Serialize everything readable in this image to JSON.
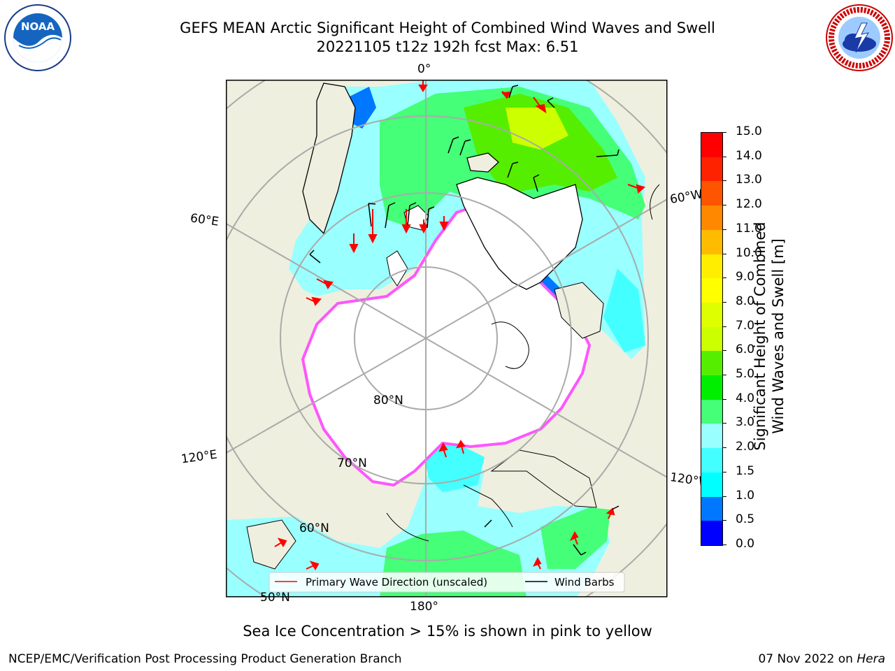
{
  "header": {
    "title_line1": "GEFS MEAN Arctic Significant Height of Combined Wind Waves and Swell",
    "title_line2": "20221105 t12z 192h fcst   Max: 6.51"
  },
  "logos": {
    "left": "NOAA",
    "left_ring_text": "NATIONAL OCEANIC AND ATMOSPHERIC ADMINISTRATION · U.S. DEPARTMENT OF COMMERCE",
    "right_ring_text": "NATIONAL WEATHER SERVICE"
  },
  "map": {
    "labels": {
      "lon_0": "0°",
      "lon_180": "180°",
      "lon_60e": "60°E",
      "lon_60w": "60°W",
      "lon_120e": "120°E",
      "lon_120w": "120°W",
      "lat_80": "80°N",
      "lat_70": "70°N",
      "lat_60": "60°N",
      "lat_50": "50°N"
    },
    "legend": {
      "wave_dir": "Primary Wave Direction (unscaled)",
      "wind_barbs": "Wind Barbs",
      "wave_dir_color": "#ff0000",
      "wind_barbs_color": "#000000"
    },
    "colors": {
      "land": "#efefdf",
      "ice": "#ffffff",
      "ice_edge": "#ff55ff"
    }
  },
  "colorbar": {
    "label_line1": "Significant Height of Combined",
    "label_line2": "Wind Waves and Swell [m]",
    "ticks": [
      "0.0",
      "0.5",
      "1.0",
      "1.5",
      "2.0",
      "3.0",
      "4.0",
      "5.0",
      "6.0",
      "7.0",
      "8.0",
      "9.0",
      "10.0",
      "11.0",
      "12.0",
      "13.0",
      "14.0",
      "15.0"
    ],
    "colors": [
      "#0000ff",
      "#0077ff",
      "#00ffff",
      "#44ffff",
      "#99ffff",
      "#44ff77",
      "#00ee00",
      "#55ee00",
      "#ccff00",
      "#ddff00",
      "#ffff00",
      "#ffee00",
      "#ffbb00",
      "#ff8800",
      "#ff5500",
      "#ff2200",
      "#ff0000"
    ]
  },
  "footer": {
    "note": "Sea Ice Concentration > 15% is shown in pink to yellow",
    "left": "NCEP/EMC/Verification Post Processing Product Generation Branch",
    "right_date": "07 Nov 2022 on ",
    "right_machine": "Hera"
  }
}
